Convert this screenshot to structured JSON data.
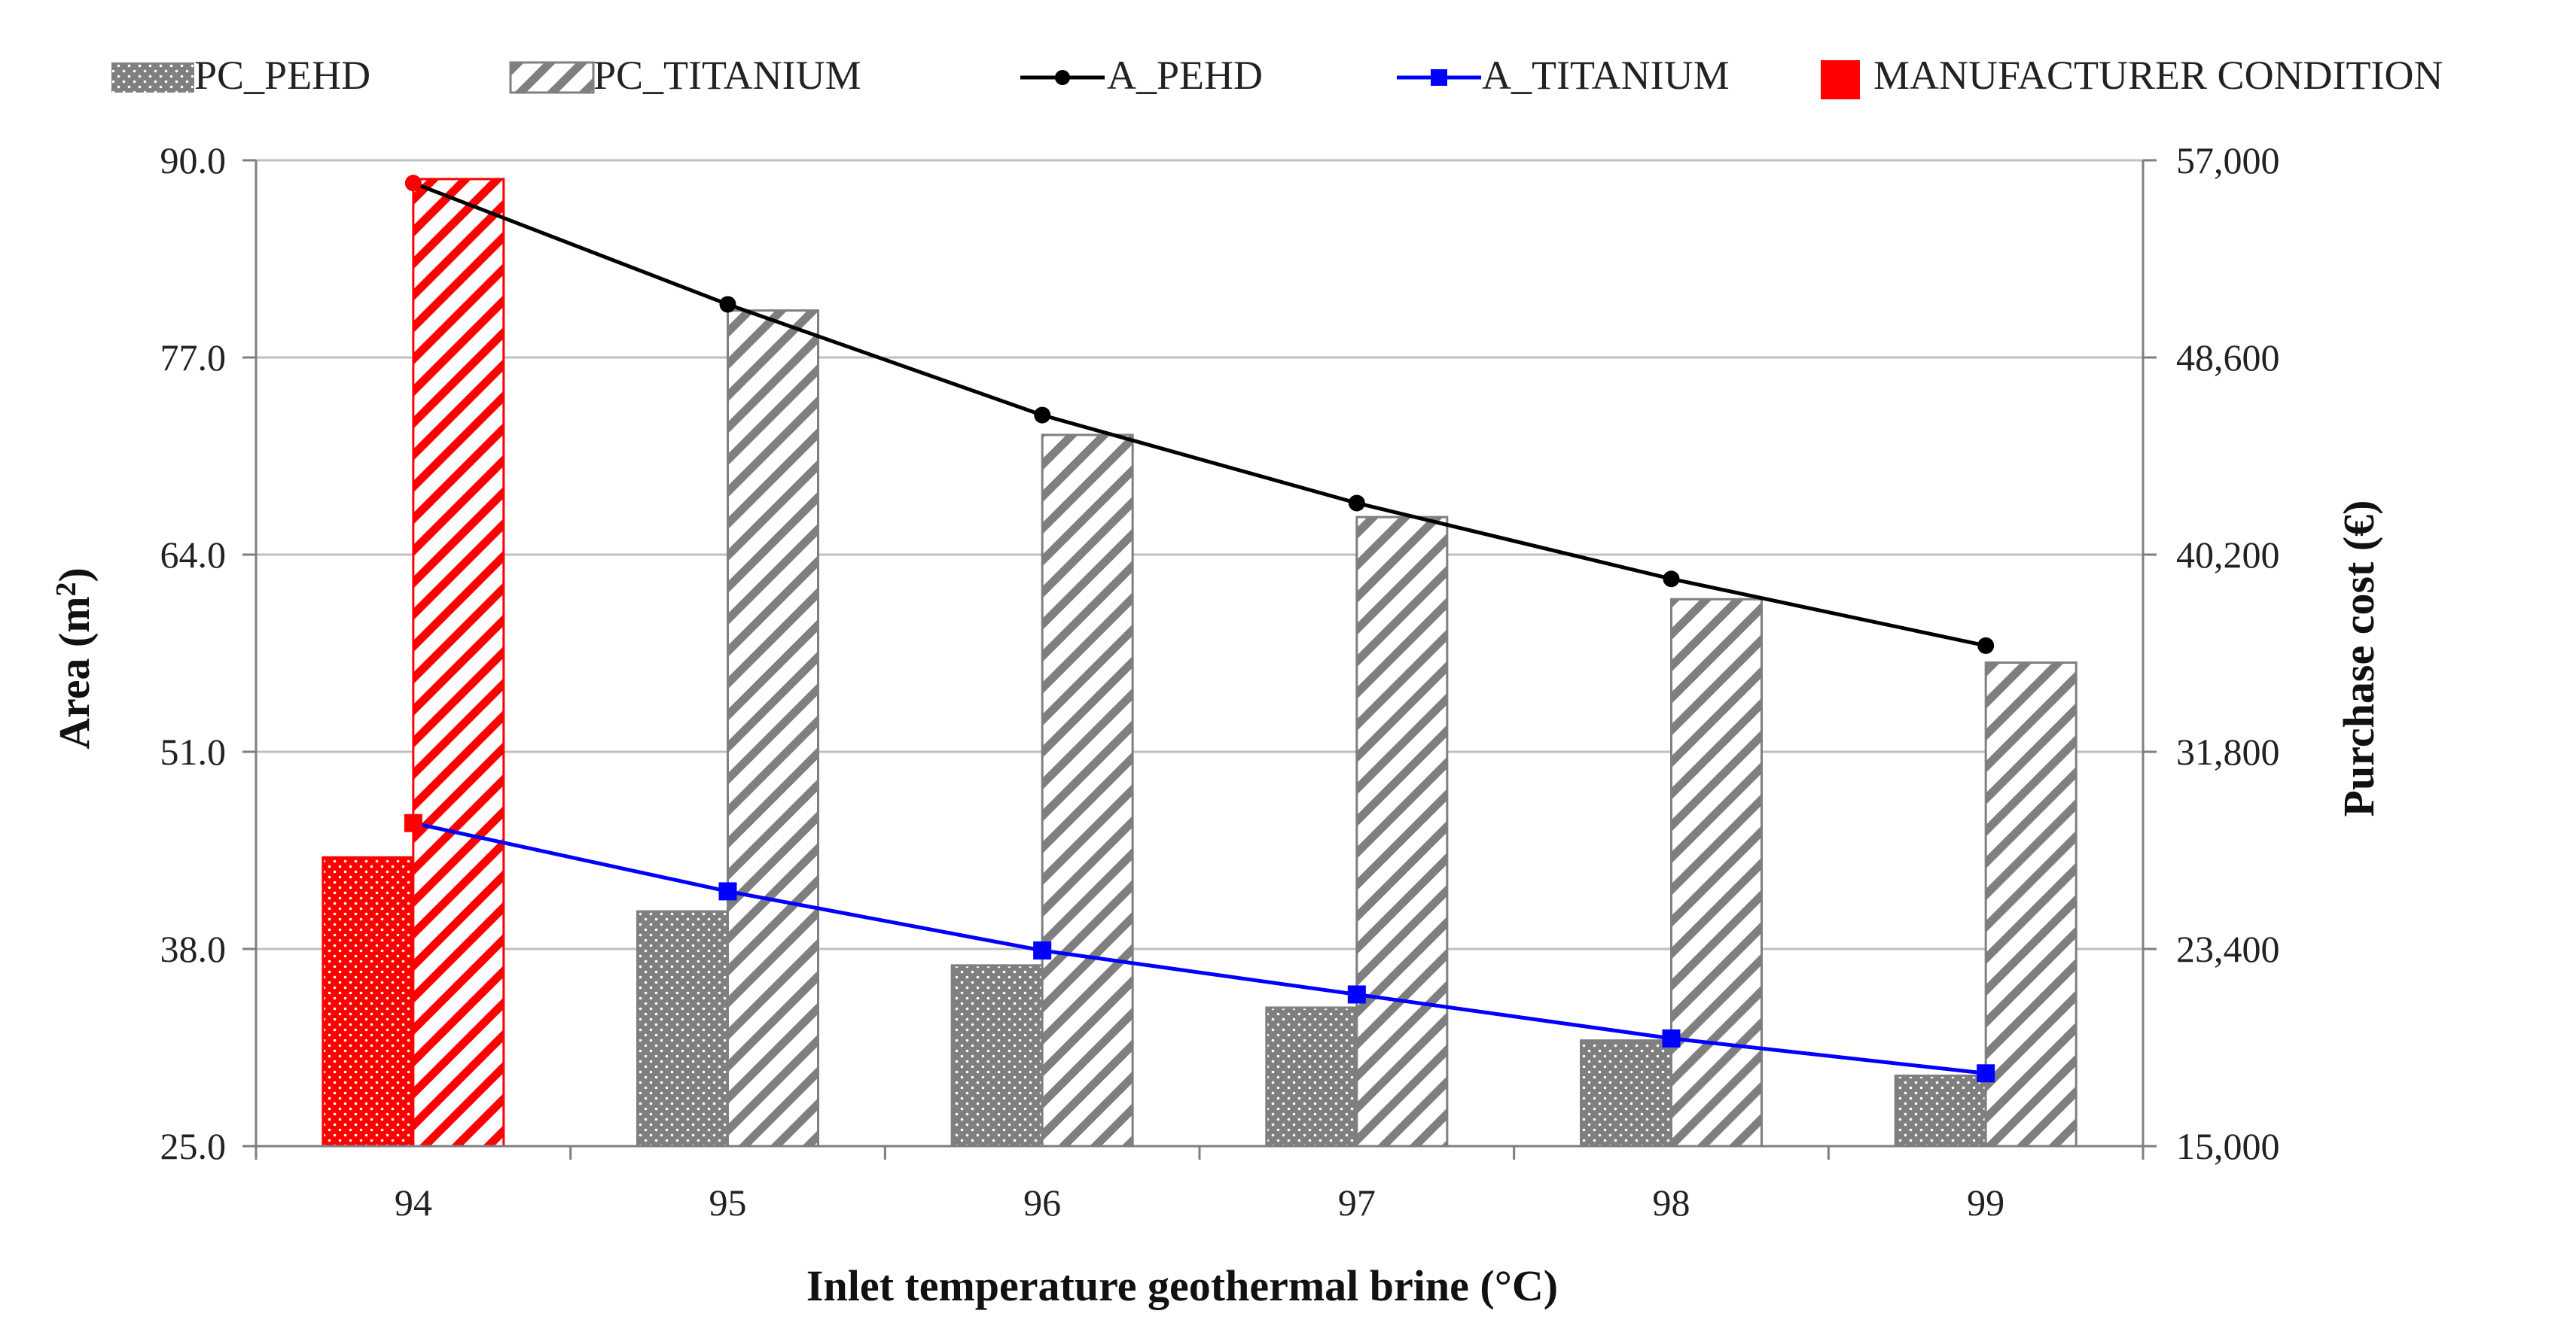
{
  "chart_data": {
    "type": "bar",
    "categories": [
      "94",
      "95",
      "96",
      "97",
      "98",
      "99"
    ],
    "x_label": "Inlet temperature geothermal brine (°C)",
    "y_left": {
      "label": "Area (m²)",
      "range": [
        25.0,
        90.0
      ],
      "ticks": [
        "90.0",
        "77.0",
        "64.0",
        "51.0",
        "38.0",
        "25.0"
      ]
    },
    "y_right": {
      "label": "Purchase cost (€)",
      "range": [
        15000,
        57000
      ],
      "ticks": [
        "57,000",
        "48,600",
        "40,200",
        "31,800",
        "23,400",
        "15,000"
      ]
    },
    "bar_series": [
      {
        "name": "PC_PEHD",
        "axis": "right",
        "values": [
          27300,
          25000,
          22700,
          20900,
          19500,
          18000
        ],
        "pattern": "dots",
        "color": "#808080"
      },
      {
        "name": "PC_TITANIUM",
        "axis": "right",
        "values": [
          56200,
          50600,
          45300,
          41800,
          38300,
          35600
        ],
        "pattern": "hatch",
        "color": "#808080"
      }
    ],
    "line_series": [
      {
        "name": "A_PEHD",
        "axis": "left",
        "values": [
          88.5,
          80.5,
          73.2,
          67.4,
          62.4,
          58.0
        ],
        "color": "#000000",
        "marker": "circle"
      },
      {
        "name": "A_TITANIUM",
        "axis": "left",
        "values": [
          46.3,
          41.8,
          37.9,
          35.0,
          32.1,
          29.8
        ],
        "color": "#0000ff",
        "marker": "square"
      }
    ],
    "highlight": {
      "name": "MANUFACTURER CONDITION",
      "category": "94",
      "color": "#ff0000"
    },
    "legend_position": "top"
  }
}
